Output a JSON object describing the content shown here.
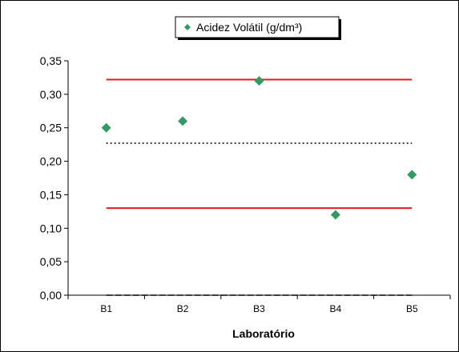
{
  "chart_data": {
    "type": "scatter",
    "categories": [
      "B1",
      "B2",
      "B3",
      "B4",
      "B5"
    ],
    "series": [
      {
        "name": "Acidez Volátil (g/dm³)",
        "values": [
          0.25,
          0.26,
          0.32,
          0.12,
          0.18
        ],
        "color": "#339966",
        "marker": "diamond"
      }
    ],
    "reference_lines": [
      {
        "value": 0.322,
        "style": "solid",
        "color": "#e31b1b"
      },
      {
        "value": 0.227,
        "style": "dotted",
        "color": "#000000"
      },
      {
        "value": 0.13,
        "style": "solid",
        "color": "#e31b1b"
      },
      {
        "value": 0.0,
        "style": "dashed",
        "color": "#000000"
      }
    ],
    "xlabel": "Laboratório",
    "ylabel": "",
    "ylim": [
      0,
      0.35
    ],
    "yticks": [
      "0,00",
      "0,05",
      "0,10",
      "0,15",
      "0,20",
      "0,25",
      "0,30",
      "0,35"
    ],
    "grid": false,
    "legend_position": "top-center"
  }
}
